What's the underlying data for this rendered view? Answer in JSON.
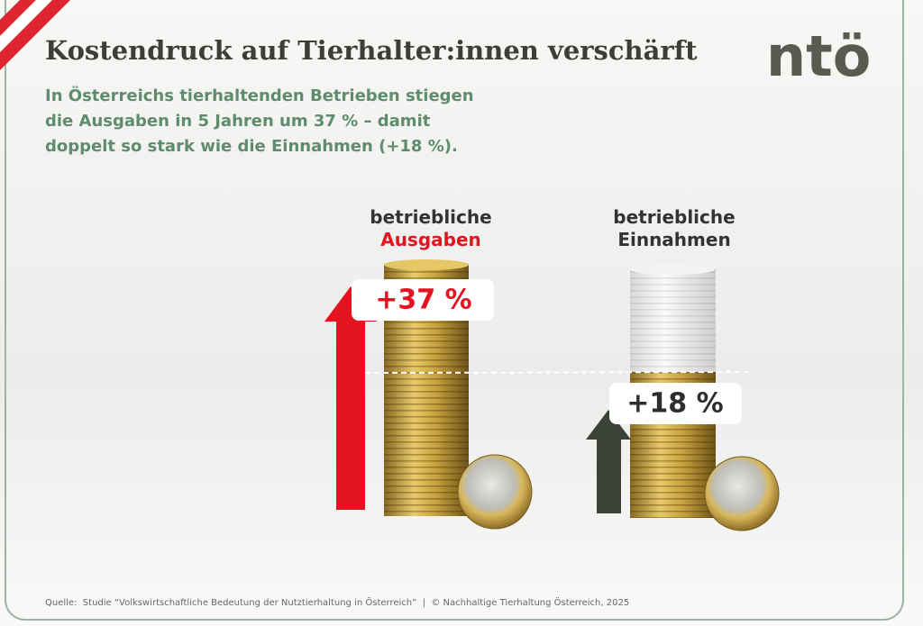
{
  "header": {
    "title": "Kostendruck auf Tierhalter:innen verschärft",
    "logo": "ntö",
    "subtitle": [
      "In Österreichs tierhaltenden Betrieben stiegen",
      "die Ausgaben in 5 Jahren um 37 % – damit",
      "doppelt so stark wie die Einnahmen (+18 %)."
    ]
  },
  "panels": [
    {
      "label": [
        "betriebliche",
        "Ausgaben"
      ],
      "badge": "+37 %"
    },
    {
      "label": [
        "betriebliche",
        "Einnahmen"
      ],
      "badge": "+18 %"
    }
  ],
  "footer": "Quelle:  Studie “Volkswirtschaftliche Bedeutung der Nutztierhaltung in Österreich”  |  © Nachhaltige Tierhaltung Österreich, 2025"
}
